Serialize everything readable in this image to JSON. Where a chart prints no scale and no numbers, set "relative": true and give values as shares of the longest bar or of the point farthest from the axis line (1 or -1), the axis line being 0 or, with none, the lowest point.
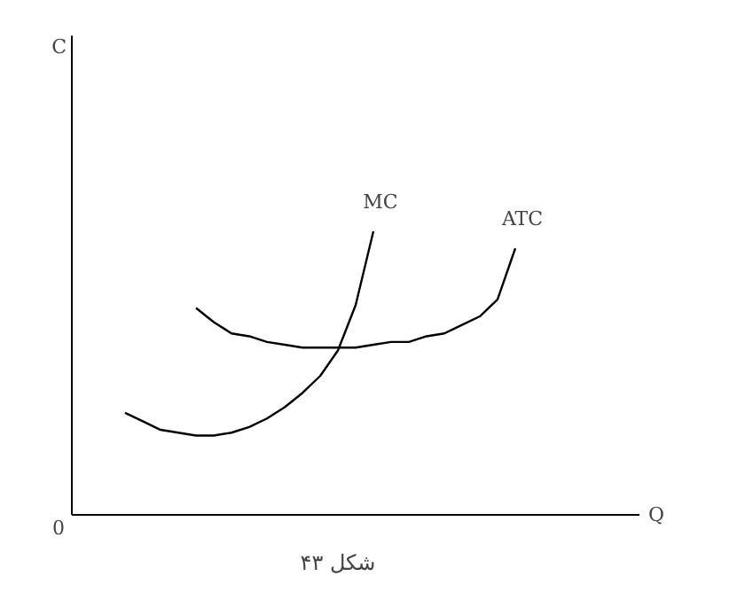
{
  "chart_data": {
    "type": "line",
    "relative": true,
    "annotations": [
      "C",
      "Q",
      "0",
      "شکل ۴۳"
    ],
    "categories": [
      null,
      null,
      null,
      null,
      null,
      null,
      null,
      null,
      null,
      null,
      null,
      null,
      null,
      null,
      null,
      null,
      null,
      null,
      null,
      null,
      null,
      null,
      null
    ],
    "series": [
      {
        "name": "MC",
        "color": "#000000",
        "values": [
          0.36,
          0.33,
          0.3,
          0.29,
          0.28,
          0.28,
          0.29,
          0.31,
          0.34,
          0.38,
          0.43,
          0.49,
          0.58,
          0.74,
          1,
          null,
          null,
          null,
          null,
          null,
          null,
          null,
          null
        ]
      },
      {
        "name": "ATC",
        "color": "#000000",
        "values": [
          null,
          null,
          null,
          null,
          0.73,
          0.68,
          0.64,
          0.63,
          0.61,
          0.6,
          0.59,
          0.59,
          0.59,
          0.59,
          0.6,
          0.61,
          0.61,
          0.63,
          0.64,
          0.67,
          0.7,
          0.76,
          0.94
        ]
      }
    ]
  }
}
